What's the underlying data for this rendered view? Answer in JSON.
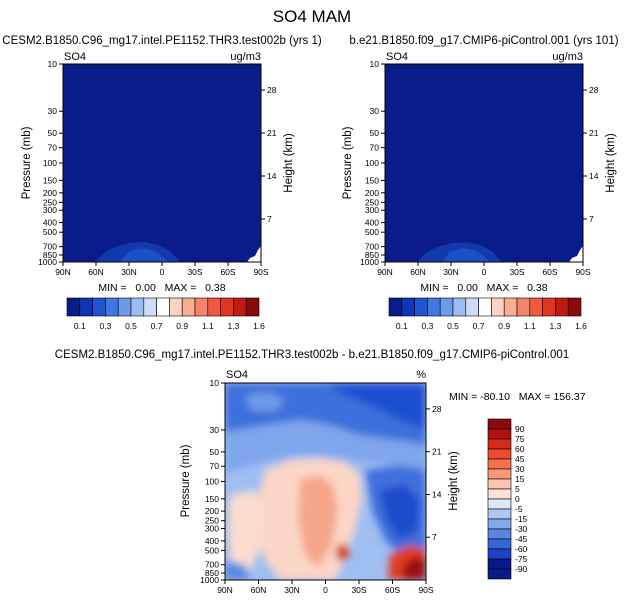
{
  "title": "SO4 MAM",
  "chart_data": [
    {
      "type": "heatmap",
      "panel": "top-left",
      "title": "CESM2.B1850.C96_mg17.intel.PE1152.THR3.test002b (yrs 1)",
      "variable": "SO4",
      "units": "ug/m3",
      "xlabel": "",
      "ylabel": "Pressure (mb)",
      "y2label": "Height (km)",
      "xticks": [
        "90N",
        "60N",
        "30N",
        "0",
        "30S",
        "60S",
        "90S"
      ],
      "yticks": [
        "10",
        "30",
        "50",
        "70",
        "100",
        "150",
        "200",
        "250",
        "300",
        "400",
        "500",
        "700",
        "850",
        "1000"
      ],
      "y2ticks": [
        "28",
        "21",
        "14",
        "7"
      ],
      "stats": "MIN =   0.00   MAX =   0.38",
      "min": 0.0,
      "max": 0.38,
      "colorbar_labels": [
        "0.1",
        "0.3",
        "0.5",
        "0.7",
        "0.9",
        "1.1",
        "1.3",
        "1.6"
      ]
    },
    {
      "type": "heatmap",
      "panel": "top-right",
      "title": "b.e21.B1850.f09_g17.CMIP6-piControl.001 (yrs 101)",
      "variable": "SO4",
      "units": "ug/m3",
      "xlabel": "",
      "ylabel": "Pressure (mb)",
      "y2label": "Height (km)",
      "xticks": [
        "90N",
        "60N",
        "30N",
        "0",
        "30S",
        "60S",
        "90S"
      ],
      "yticks": [
        "10",
        "30",
        "50",
        "70",
        "100",
        "150",
        "200",
        "250",
        "300",
        "400",
        "500",
        "700",
        "850",
        "1000"
      ],
      "y2ticks": [
        "28",
        "21",
        "14",
        "7"
      ],
      "stats": "MIN =   0.00   MAX =   0.38",
      "min": 0.0,
      "max": 0.38,
      "colorbar_labels": [
        "0.1",
        "0.3",
        "0.5",
        "0.7",
        "0.9",
        "1.1",
        "1.3",
        "1.6"
      ]
    },
    {
      "type": "heatmap",
      "panel": "bottom",
      "title": "CESM2.B1850.C96_mg17.intel.PE1152.THR3.test002b - b.e21.B1850.f09_g17.CMIP6-piControl.001",
      "variable": "SO4",
      "units": "%",
      "xlabel": "",
      "ylabel": "Pressure (mb)",
      "y2label": "Height (km)",
      "xticks": [
        "90N",
        "60N",
        "30N",
        "0",
        "30S",
        "60S",
        "90S"
      ],
      "yticks": [
        "10",
        "30",
        "50",
        "70",
        "100",
        "150",
        "200",
        "250",
        "300",
        "400",
        "500",
        "700",
        "850",
        "1000"
      ],
      "y2ticks": [
        "28",
        "21",
        "14",
        "7"
      ],
      "stats": "MIN = -80.10   MAX = 156.37",
      "min": -80.1,
      "max": 156.37,
      "colorbar_labels": [
        "90",
        "75",
        "60",
        "45",
        "30",
        "15",
        "5",
        "0",
        "-5",
        "-15",
        "-30",
        "-45",
        "-60",
        "-75",
        "-90"
      ]
    }
  ],
  "colors": {
    "seq_scale": [
      "#0a1c8a",
      "#0f34b4",
      "#1e55d0",
      "#3f78e0",
      "#6c9aea",
      "#9dbcf2",
      "#cfdcf6",
      "#ffffff",
      "#fbd3c3",
      "#f9ad93",
      "#f6836a",
      "#ef5a3f",
      "#e2351f",
      "#c21a12",
      "#8a0b0a"
    ],
    "div_scale": [
      "#8b0a0a",
      "#b3120e",
      "#d82a1a",
      "#ef4a2d",
      "#f7704e",
      "#f9977b",
      "#fcc4ae",
      "#fbe2d5",
      "#dde7f7",
      "#aec8f2",
      "#84a8ec",
      "#5a86e3",
      "#3766d8",
      "#1a45c9",
      "#061a8c"
    ],
    "field_low": "#0a1c8a"
  }
}
